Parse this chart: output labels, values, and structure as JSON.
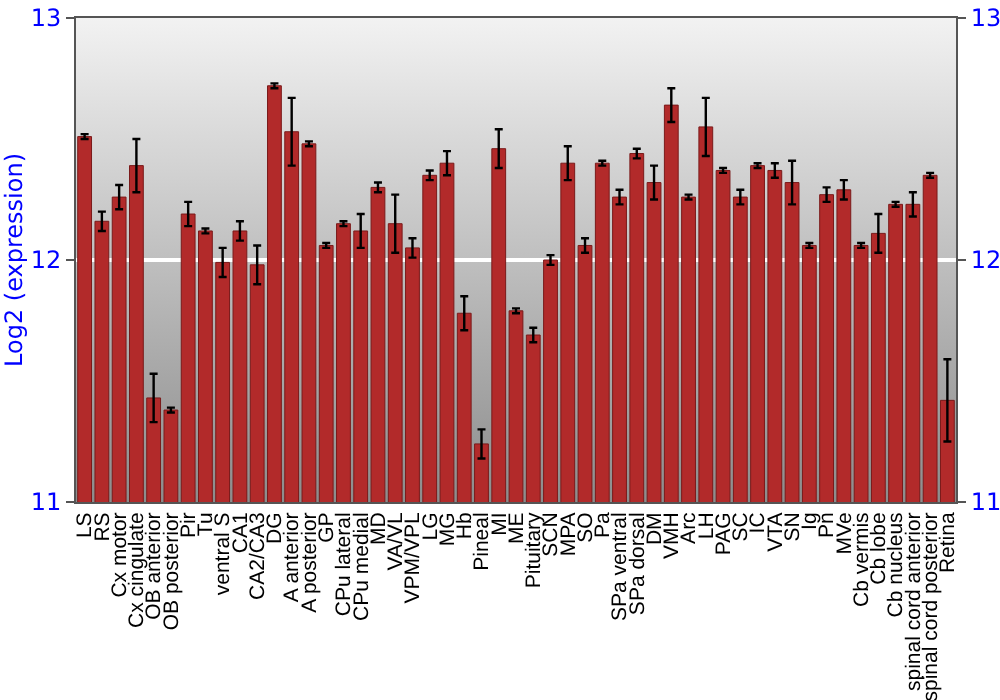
{
  "chart_data": {
    "type": "bar",
    "ylabel": "Log2 (expression)",
    "categories": [
      "LS",
      "RS",
      "Cx motor",
      "Cx cingulate",
      "OB anterior",
      "OB posterior",
      "Pir",
      "Tu",
      "ventral S",
      "CA1",
      "CA2/CA3",
      "DG",
      "A anterior",
      "A posterior",
      "GP",
      "CPu lateral",
      "CPu medial",
      "MD",
      "VA/VL",
      "VPM/VPL",
      "LG",
      "MG",
      "Hb",
      "Pineal",
      "MI",
      "ME",
      "Pituitary",
      "SCN",
      "MPA",
      "SO",
      "Pa",
      "SPa ventral",
      "SPa dorsal",
      "DM",
      "VMH",
      "Arc",
      "LH",
      "PAG",
      "SC",
      "IC",
      "VTA",
      "SN",
      "Ig",
      "Pn",
      "MVe",
      "Cb vermis",
      "Cb lobe",
      "Cb nucleus",
      "spinal cord anterior",
      "spinal cord posterior",
      "Retina"
    ],
    "values": [
      12.51,
      12.16,
      12.26,
      12.39,
      11.43,
      11.38,
      12.19,
      12.12,
      11.99,
      12.12,
      11.98,
      12.72,
      12.53,
      12.48,
      12.06,
      12.15,
      12.12,
      12.3,
      12.15,
      12.05,
      12.35,
      12.4,
      11.78,
      11.24,
      12.46,
      11.79,
      11.69,
      12.0,
      12.4,
      12.06,
      12.4,
      12.26,
      12.44,
      12.32,
      12.64,
      12.26,
      12.55,
      12.37,
      12.26,
      12.39,
      12.37,
      12.32,
      12.06,
      12.27,
      12.29,
      12.06,
      12.11,
      12.23,
      12.23,
      12.35,
      11.42
    ],
    "errors": [
      0.01,
      0.04,
      0.05,
      0.11,
      0.1,
      0.01,
      0.05,
      0.01,
      0.06,
      0.04,
      0.08,
      0.01,
      0.14,
      0.01,
      0.01,
      0.01,
      0.07,
      0.02,
      0.12,
      0.04,
      0.02,
      0.05,
      0.07,
      0.06,
      0.08,
      0.01,
      0.03,
      0.02,
      0.07,
      0.03,
      0.01,
      0.03,
      0.02,
      0.07,
      0.07,
      0.01,
      0.12,
      0.01,
      0.03,
      0.01,
      0.03,
      0.09,
      0.01,
      0.03,
      0.04,
      0.01,
      0.08,
      0.01,
      0.05,
      0.01,
      0.17
    ],
    "color": "#b22a2a",
    "ylim": [
      11,
      13
    ],
    "yticks": [
      11,
      12,
      13
    ],
    "y2lim": [
      11,
      13
    ],
    "y2ticks": [
      11,
      12,
      13
    ],
    "grid": "y"
  }
}
